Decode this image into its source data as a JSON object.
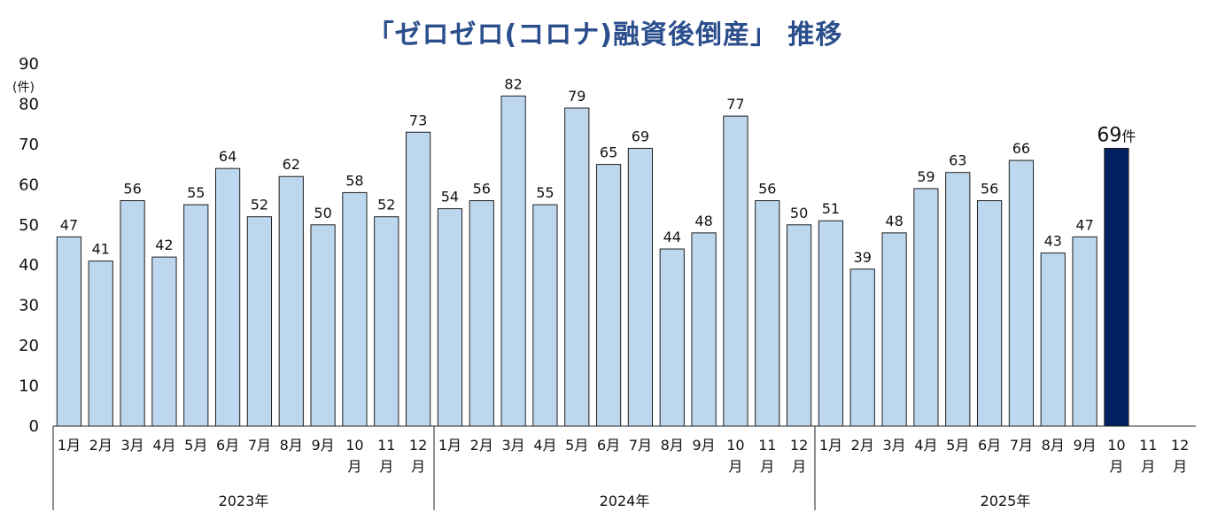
{
  "chart_data": {
    "type": "bar",
    "title": "「ゼロゼロ(コロナ)融資後倒産」 推移",
    "ylabel": "(件)",
    "ylim": [
      0,
      90
    ],
    "yticks": [
      0,
      10,
      20,
      30,
      40,
      50,
      60,
      70,
      80,
      90
    ],
    "groups": [
      {
        "year": "2023年",
        "months": [
          "1月",
          "2月",
          "3月",
          "4月",
          "5月",
          "6月",
          "7月",
          "8月",
          "9月",
          "10月",
          "11月",
          "12月"
        ],
        "values": [
          47,
          41,
          56,
          42,
          55,
          64,
          52,
          62,
          50,
          58,
          52,
          73
        ]
      },
      {
        "year": "2024年",
        "months": [
          "1月",
          "2月",
          "3月",
          "4月",
          "5月",
          "6月",
          "7月",
          "8月",
          "9月",
          "10月",
          "11月",
          "12月"
        ],
        "values": [
          54,
          56,
          82,
          55,
          79,
          65,
          69,
          44,
          48,
          77,
          56,
          50
        ]
      },
      {
        "year": "2025年",
        "months": [
          "1月",
          "2月",
          "3月",
          "4月",
          "5月",
          "6月",
          "7月",
          "8月",
          "9月",
          "10月",
          "11月",
          "12月"
        ],
        "values": [
          51,
          39,
          48,
          59,
          63,
          56,
          66,
          43,
          47,
          69,
          null,
          null
        ]
      }
    ],
    "highlight": {
      "group": 2,
      "index": 9,
      "suffix": "件"
    },
    "colors": {
      "bar": "#bdd7ee",
      "bar_border": "#1f1f1f",
      "highlight": "#002060",
      "title": "#2b4e8c"
    },
    "grid": false,
    "legend": "none"
  }
}
